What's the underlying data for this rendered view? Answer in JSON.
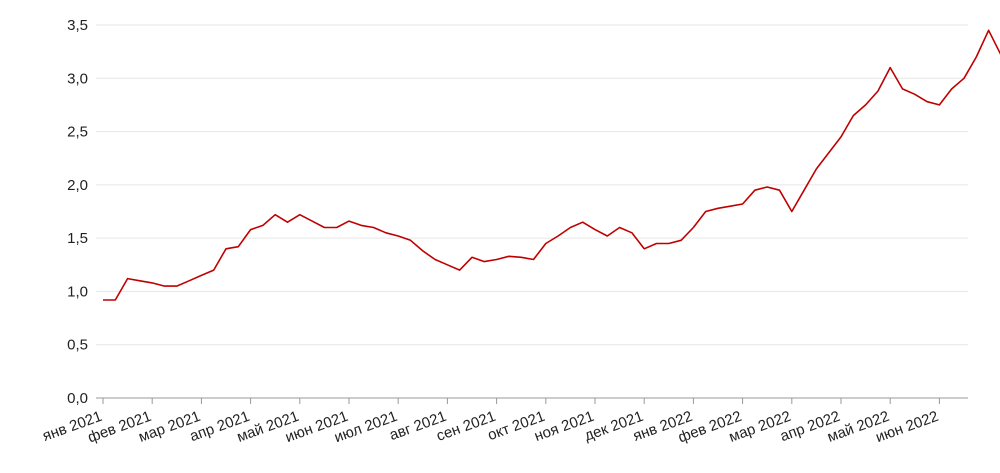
{
  "chart_data": {
    "type": "line",
    "categories": [
      "янв 2021",
      null,
      null,
      null,
      "фев 2021",
      null,
      null,
      null,
      "мар 2021",
      null,
      null,
      null,
      "апр 2021",
      null,
      null,
      null,
      "май 2021",
      null,
      null,
      null,
      "июн 2021",
      null,
      null,
      null,
      "июл 2021",
      null,
      null,
      null,
      "авг 2021",
      null,
      null,
      null,
      "сен 2021",
      null,
      null,
      null,
      "окт 2021",
      null,
      null,
      null,
      "ноя 2021",
      null,
      null,
      null,
      "дек 2021",
      null,
      null,
      null,
      "янв 2022",
      null,
      null,
      null,
      "фев 2022",
      null,
      null,
      null,
      "мар 2022",
      null,
      null,
      null,
      "апр 2022",
      null,
      null,
      null,
      "май 2022",
      null,
      null,
      null,
      "июн 2022",
      null,
      null,
      null,
      null,
      null
    ],
    "series": [
      {
        "color": "#c00000",
        "values": [
          0.92,
          0.92,
          1.12,
          1.1,
          1.08,
          1.05,
          1.05,
          1.1,
          1.15,
          1.2,
          1.4,
          1.42,
          1.58,
          1.62,
          1.72,
          1.65,
          1.72,
          1.66,
          1.6,
          1.6,
          1.66,
          1.62,
          1.6,
          1.55,
          1.52,
          1.48,
          1.38,
          1.3,
          1.25,
          1.2,
          1.32,
          1.28,
          1.3,
          1.33,
          1.32,
          1.3,
          1.45,
          1.52,
          1.6,
          1.65,
          1.58,
          1.52,
          1.6,
          1.55,
          1.4,
          1.45,
          1.45,
          1.48,
          1.6,
          1.75,
          1.78,
          1.8,
          1.82,
          1.95,
          1.98,
          1.95,
          1.75,
          1.95,
          2.15,
          2.3,
          2.45,
          2.65,
          2.75,
          2.88,
          3.1,
          2.9,
          2.85,
          2.78,
          2.75,
          2.9,
          3.0,
          3.2,
          3.45,
          3.22
        ]
      }
    ],
    "ylim": [
      0,
      3.5
    ],
    "yticks": [
      {
        "value": 0,
        "label": "0,0"
      },
      {
        "value": 0.5,
        "label": "0,5"
      },
      {
        "value": 1,
        "label": "1,0"
      },
      {
        "value": 1.5,
        "label": "1,5"
      },
      {
        "value": 2,
        "label": "2,0"
      },
      {
        "value": 2.5,
        "label": "2,5"
      },
      {
        "value": 3,
        "label": "3,0"
      },
      {
        "value": 3.5,
        "label": "3,5"
      }
    ],
    "grid": true
  }
}
